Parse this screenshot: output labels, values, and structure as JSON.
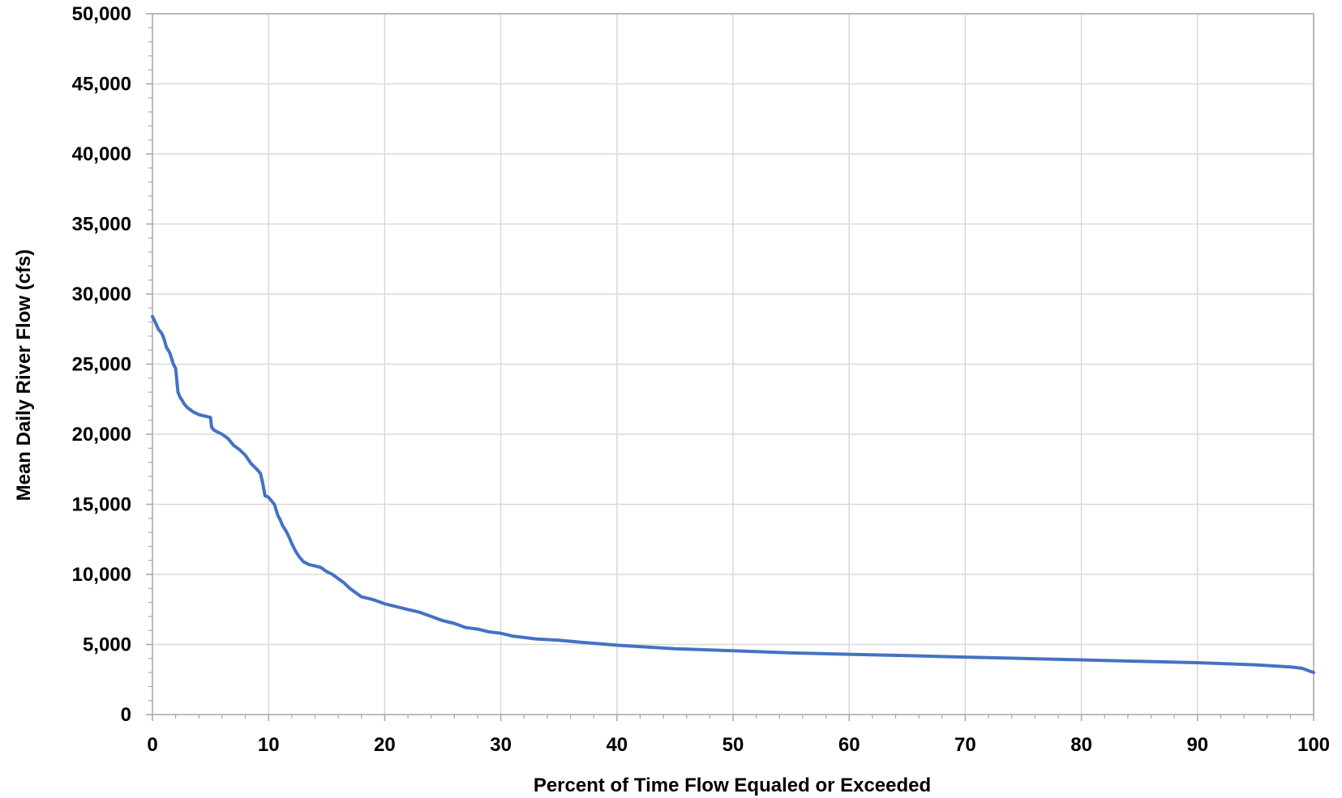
{
  "chart_data": {
    "type": "line",
    "title": "",
    "xlabel": "Percent of Time Flow Equaled or Exceeded",
    "ylabel": "Mean Daily River Flow (cfs)",
    "xlim": [
      0,
      100
    ],
    "ylim": [
      0,
      50000
    ],
    "x_ticks": [
      0,
      10,
      20,
      30,
      40,
      50,
      60,
      70,
      80,
      90,
      100
    ],
    "x_tick_labels": [
      "0",
      "10",
      "20",
      "30",
      "40",
      "50",
      "60",
      "70",
      "80",
      "90",
      "100"
    ],
    "y_ticks": [
      0,
      5000,
      10000,
      15000,
      20000,
      25000,
      30000,
      35000,
      40000,
      45000,
      50000
    ],
    "y_tick_labels": [
      "0",
      "5,000",
      "10,000",
      "15,000",
      "20,000",
      "25,000",
      "30,000",
      "35,000",
      "40,000",
      "45,000",
      "50,000"
    ],
    "grid": true,
    "legend": false,
    "line_color": "#4472C4",
    "grid_color": "#d9d9d9",
    "series": [
      {
        "x": [
          0,
          0.3,
          0.5,
          0.8,
          1.0,
          1.2,
          1.5,
          1.8,
          2.0,
          2.2,
          2.4,
          2.5,
          2.7,
          3.0,
          3.5,
          4.0,
          4.5,
          5.0,
          5.1,
          5.3,
          5.5,
          6.0,
          6.5,
          7.0,
          7.5,
          8.0,
          8.5,
          9.0,
          9.3,
          9.5,
          9.7,
          9.9,
          10.0,
          10.5,
          10.8,
          11.0,
          11.2,
          11.5,
          11.8,
          12.0,
          12.3,
          12.6,
          13.0,
          13.5,
          14.0,
          14.5,
          15.0,
          15.5,
          16.0,
          16.5,
          17.0,
          17.5,
          18.0,
          19.0,
          20.0,
          21.0,
          22.0,
          23.0,
          24.0,
          25.0,
          26.0,
          27.0,
          28.0,
          29.0,
          30.0,
          31.0,
          33.0,
          35.0,
          37.0,
          40.0,
          45.0,
          50.0,
          55.0,
          60.0,
          65.0,
          70.0,
          75.0,
          80.0,
          85.0,
          90.0,
          95.0,
          98.0,
          99.0,
          99.5,
          100.0
        ],
        "y": [
          28400,
          27900,
          27500,
          27200,
          26800,
          26200,
          25800,
          25000,
          24700,
          23000,
          22600,
          22500,
          22200,
          21900,
          21600,
          21400,
          21300,
          21200,
          20500,
          20300,
          20200,
          20000,
          19700,
          19200,
          18900,
          18500,
          17900,
          17500,
          17200,
          16500,
          15600,
          15550,
          15500,
          15000,
          14200,
          13900,
          13500,
          13100,
          12600,
          12200,
          11700,
          11300,
          10900,
          10700,
          10600,
          10500,
          10200,
          10000,
          9700,
          9400,
          9000,
          8700,
          8400,
          8200,
          7900,
          7700,
          7500,
          7300,
          7000,
          6700,
          6500,
          6200,
          6100,
          5900,
          5800,
          5600,
          5400,
          5300,
          5150,
          4950,
          4700,
          4550,
          4400,
          4300,
          4200,
          4100,
          4000,
          3900,
          3800,
          3700,
          3550,
          3400,
          3300,
          3150,
          3000
        ]
      }
    ]
  }
}
